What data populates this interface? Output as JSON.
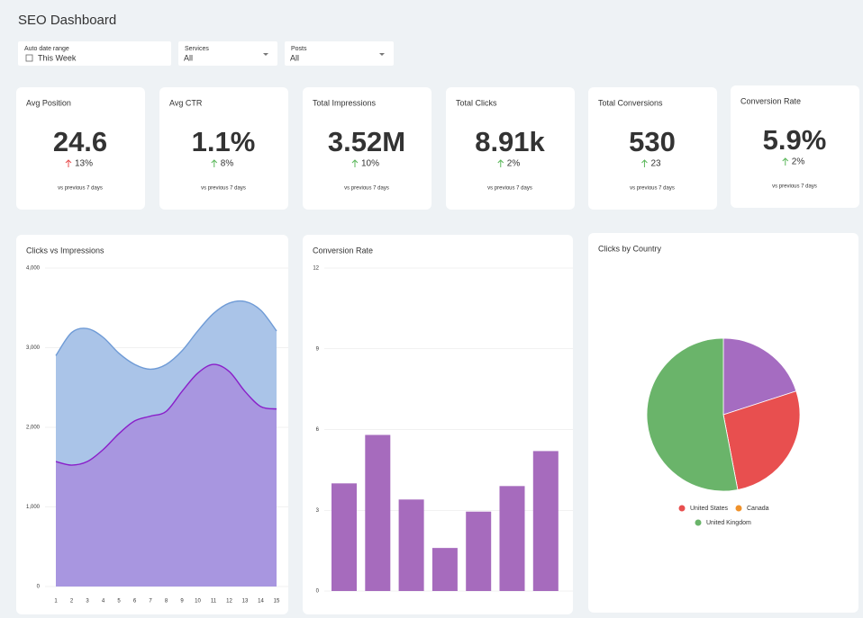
{
  "header": {
    "title": "SEO Dashboard"
  },
  "filters": [
    {
      "label": "Auto date range",
      "value": "This Week"
    },
    {
      "label": "Services",
      "value": "All"
    },
    {
      "label": "Posts",
      "value": "All"
    }
  ],
  "kpis": [
    {
      "label": "Avg Position",
      "value": "24.6",
      "change": "13%",
      "change_color": "#e84f4f",
      "note": "vs previous 7 days"
    },
    {
      "label": "Avg CTR",
      "value": "1.1%",
      "change": "8%",
      "change_color": "#5cb85c",
      "note": "vs previous 7 days"
    },
    {
      "label": "Total Impressions",
      "value": "3.52M",
      "change": "10%",
      "change_color": "#5cb85c",
      "note": "vs previous 7 days"
    },
    {
      "label": "Total Clicks",
      "value": "8.91k",
      "change": "2%",
      "change_color": "#5cb85c",
      "note": "vs previous 7 days"
    },
    {
      "label": "Total Conversions",
      "value": "530",
      "change": "23",
      "change_color": "#5cb85c",
      "note": "vs previous 7 days"
    },
    {
      "label": "Conversion Rate",
      "value": "5.9%",
      "change": "2%",
      "change_color": "#5cb85c",
      "note": "vs previous 7 days"
    }
  ],
  "chart_data": [
    {
      "type": "area",
      "title": "Clicks vs Impressions",
      "x": [
        1,
        2,
        3,
        4,
        5,
        6,
        7,
        8,
        9,
        10,
        11,
        12,
        13,
        14,
        15
      ],
      "xticks": [
        1,
        2,
        3,
        4,
        5,
        6,
        7,
        8,
        9,
        10,
        11,
        12,
        13,
        14,
        15
      ],
      "xlim": [
        1,
        15
      ],
      "ylim": [
        0,
        4000
      ],
      "yticks": [
        0,
        {
          "value": 1000,
          "label": "1,000"
        },
        {
          "value": 2000,
          "label": "2,000"
        },
        {
          "value": 3000,
          "label": "3,000"
        },
        {
          "value": 4000,
          "label": "4,000"
        }
      ],
      "grid": true,
      "series": [
        {
          "color": "#6f9bd6",
          "fill": "#aac4e8",
          "values": [
            2900,
            3190,
            3240,
            3130,
            2930,
            2790,
            2730,
            2790,
            2960,
            3210,
            3430,
            3560,
            3580,
            3470,
            3210
          ]
        },
        {
          "color": "#8a1fc9",
          "fill": "#a896e0",
          "values": [
            1570,
            1525,
            1570,
            1720,
            1920,
            2080,
            2140,
            2200,
            2450,
            2680,
            2790,
            2700,
            2450,
            2260,
            2230
          ]
        }
      ]
    },
    {
      "type": "bar",
      "title": "Conversion Rate",
      "values": [
        4.0,
        5.8,
        3.4,
        1.6,
        2.95,
        3.9,
        5.2
      ],
      "color": "#a66bbd",
      "ylim": [
        0,
        12
      ],
      "yticks": [
        0,
        3,
        6,
        9,
        12
      ],
      "grid": true
    },
    {
      "type": "pie",
      "title": "Clicks by Country",
      "categories": [
        null,
        "United States",
        "Canada",
        "United Kingdom"
      ],
      "values": [
        20,
        27,
        0,
        53
      ],
      "colors": [
        "#a56cc1",
        "#e84f4f",
        "#f0922b",
        "#6ab46a"
      ]
    }
  ]
}
